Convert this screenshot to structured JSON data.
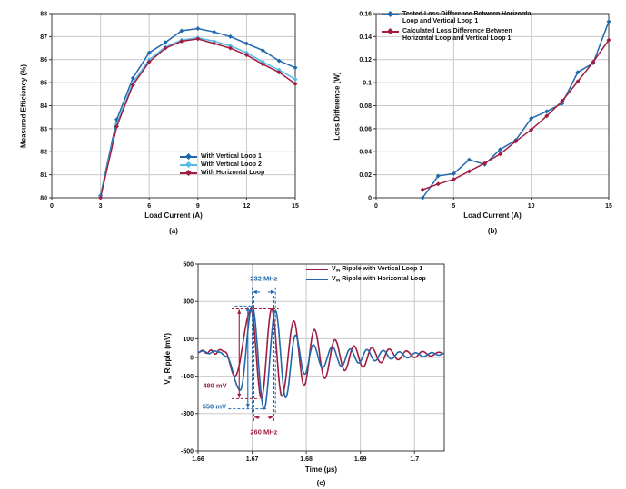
{
  "colors": {
    "blue": "#2068ac",
    "cyan": "#53bde6",
    "crimson": "#a01d40",
    "grid": "#c9c9c9",
    "border": "#3a3a3a",
    "text": "#111111"
  },
  "chart_data": [
    {
      "id": "a",
      "type": "line",
      "xlabel": "Load Current (A)",
      "ylabel": "Measured Efficiency (%)",
      "caption": "(a)",
      "xlim": [
        0,
        15
      ],
      "ylim": [
        80,
        88
      ],
      "grid": true,
      "legend_position": "bottom-right-inside",
      "xticks": {
        "values": [
          0,
          3,
          6,
          9,
          12,
          15
        ],
        "labels": [
          "0",
          "3",
          "6",
          "9",
          "12",
          "15"
        ]
      },
      "yticks": {
        "values": [
          80,
          81,
          82,
          83,
          84,
          85,
          86,
          87,
          88
        ],
        "labels": [
          "80",
          "81",
          "82",
          "83",
          "84",
          "85",
          "86",
          "87",
          "88"
        ]
      },
      "x": [
        3,
        4,
        5,
        6,
        7,
        8,
        9,
        10,
        11,
        12,
        13,
        14,
        15
      ],
      "series": [
        {
          "name": "With Vertical Loop 1",
          "color": "blue",
          "values": [
            80.1,
            83.4,
            85.2,
            86.3,
            86.75,
            87.25,
            87.35,
            87.2,
            87.0,
            86.7,
            86.4,
            85.95,
            85.65
          ]
        },
        {
          "name": "With Vertical Loop 2",
          "color": "cyan",
          "values": [
            80.05,
            83.2,
            85.0,
            86.0,
            86.55,
            86.85,
            86.95,
            86.8,
            86.6,
            86.3,
            85.9,
            85.55,
            85.15
          ]
        },
        {
          "name": "With Horizontal Loop",
          "color": "crimson",
          "values": [
            80.0,
            83.1,
            84.9,
            85.9,
            86.5,
            86.8,
            86.9,
            86.7,
            86.5,
            86.2,
            85.8,
            85.45,
            84.95
          ]
        }
      ]
    },
    {
      "id": "b",
      "type": "line",
      "xlabel": "Load Current (A)",
      "ylabel": "Loss Difference (W)",
      "caption": "(b)",
      "xlim": [
        0,
        15
      ],
      "ylim": [
        0,
        0.16
      ],
      "grid": true,
      "legend_position": "top-left-inside",
      "xticks": {
        "values": [
          0,
          5,
          10,
          15
        ],
        "labels": [
          "0",
          "5",
          "10",
          "15"
        ]
      },
      "yticks": {
        "values": [
          0,
          0.02,
          0.04,
          0.06,
          0.08,
          0.1,
          0.12,
          0.14,
          0.16
        ],
        "labels": [
          "0",
          "0.02",
          "0.04",
          "0.06",
          "0.08",
          "0.1",
          "0.12",
          "0.14",
          "0.16"
        ]
      },
      "x": [
        3,
        4,
        5,
        6,
        7,
        8,
        9,
        10,
        11,
        12,
        13,
        14,
        15
      ],
      "series": [
        {
          "name": "Tested Loss Difference Between Horizontal Loop and Vertical Loop 1",
          "color": "blue",
          "values": [
            0.0,
            0.019,
            0.021,
            0.033,
            0.029,
            0.042,
            0.05,
            0.069,
            0.075,
            0.082,
            0.109,
            0.117,
            0.153
          ]
        },
        {
          "name": "Calculated Loss Difference Between Horizontal Loop and Vertical Loop 1",
          "color": "crimson",
          "values": [
            0.007,
            0.012,
            0.016,
            0.023,
            0.03,
            0.038,
            0.049,
            0.059,
            0.071,
            0.084,
            0.101,
            0.118,
            0.137
          ]
        }
      ]
    },
    {
      "id": "c",
      "type": "line",
      "xlabel": "Time (µs)",
      "ylabel_parts": {
        "prefix": "V",
        "sub": "IN",
        "rest": " Ripple (mV)"
      },
      "caption": "(c)",
      "xlim": [
        1.66,
        1.7055
      ],
      "ylim": [
        -500,
        500
      ],
      "grid": true,
      "legend_position": "top-right-inside",
      "xticks": {
        "values": [
          1.66,
          1.67,
          1.68,
          1.69,
          1.7
        ],
        "labels": [
          "1.66",
          "1.67",
          "1.68",
          "1.69",
          "1.7"
        ]
      },
      "yticks": {
        "values": [
          500,
          300,
          100,
          0,
          -100,
          -300,
          -500
        ],
        "labels": [
          "500",
          "300",
          "100",
          "0",
          "-100",
          "-300",
          "-500"
        ]
      },
      "series": [
        {
          "name_parts": {
            "prefix": "V",
            "sub": "IN",
            "rest": " Ripple with Vertical Loop 1"
          },
          "color": "crimson",
          "keypoints": [
            [
              1.66,
              25
            ],
            [
              1.6608,
              38
            ],
            [
              1.6616,
              22
            ],
            [
              1.6624,
              40
            ],
            [
              1.6632,
              18
            ],
            [
              1.664,
              42
            ],
            [
              1.665,
              30
            ],
            [
              1.6668,
              -100
            ],
            [
              1.6698,
              255
            ],
            [
              1.6717,
              -220
            ],
            [
              1.6736,
              260
            ],
            [
              1.6755,
              -208
            ],
            [
              1.6777,
              195
            ],
            [
              1.6796,
              -150
            ],
            [
              1.6815,
              150
            ],
            [
              1.6834,
              -112
            ],
            [
              1.6853,
              95
            ],
            [
              1.6871,
              -70
            ],
            [
              1.6888,
              62
            ],
            [
              1.6905,
              -52
            ],
            [
              1.6921,
              52
            ],
            [
              1.6938,
              -28
            ],
            [
              1.6953,
              45
            ],
            [
              1.697,
              -12
            ],
            [
              1.6985,
              35
            ],
            [
              1.7,
              0
            ],
            [
              1.7015,
              32
            ],
            [
              1.703,
              8
            ],
            [
              1.7045,
              28
            ],
            [
              1.7055,
              20
            ]
          ]
        },
        {
          "name_parts": {
            "prefix": "V",
            "sub": "IN",
            "rest": " Ripple with Horizontal Loop"
          },
          "color": "blue",
          "keypoints": [
            [
              1.66,
              28
            ],
            [
              1.661,
              35
            ],
            [
              1.662,
              20
            ],
            [
              1.663,
              35
            ],
            [
              1.664,
              28
            ],
            [
              1.6652,
              5
            ],
            [
              1.6678,
              -175
            ],
            [
              1.67,
              275
            ],
            [
              1.6722,
              -275
            ],
            [
              1.6743,
              252
            ],
            [
              1.6762,
              -215
            ],
            [
              1.678,
              120
            ],
            [
              1.6797,
              -90
            ],
            [
              1.6813,
              68
            ],
            [
              1.683,
              -55
            ],
            [
              1.6848,
              58
            ],
            [
              1.6865,
              -48
            ],
            [
              1.6881,
              45
            ],
            [
              1.6897,
              -30
            ],
            [
              1.6912,
              42
            ],
            [
              1.6927,
              -18
            ],
            [
              1.6942,
              38
            ],
            [
              1.6957,
              -8
            ],
            [
              1.6972,
              30
            ],
            [
              1.6987,
              -2
            ],
            [
              1.7002,
              25
            ],
            [
              1.7017,
              5
            ],
            [
              1.7032,
              26
            ],
            [
              1.7045,
              12
            ],
            [
              1.7055,
              22
            ]
          ]
        }
      ],
      "annotations": {
        "labels": [
          {
            "id": "freq-blue",
            "text": "232 MHz",
            "t": 1.67215,
            "y": 420,
            "color": "blue"
          },
          {
            "id": "freq-red",
            "text": "260 MHz",
            "t": 1.67215,
            "y": -398,
            "color": "crimson"
          },
          {
            "id": "amp-red",
            "text": "480 mV",
            "t": 1.6631,
            "y": -152,
            "color": "crimson"
          },
          {
            "id": "amp-blue",
            "text": "550 mV",
            "t": 1.663,
            "y": -262,
            "color": "blue"
          }
        ],
        "vlines": [
          {
            "t": 1.67,
            "y1": 375,
            "y2": -300,
            "color": "blue"
          },
          {
            "t": 1.6743,
            "y1": 375,
            "y2": -300,
            "color": "blue"
          },
          {
            "t": 1.6703,
            "y1": 330,
            "y2": -340,
            "color": "crimson"
          },
          {
            "t": 1.674,
            "y1": 330,
            "y2": -340,
            "color": "crimson"
          }
        ],
        "hlines": [
          {
            "y": 275,
            "t1": 1.6668,
            "t2": 1.6703,
            "color": "blue"
          },
          {
            "y": -275,
            "t1": 1.6656,
            "t2": 1.6726,
            "color": "blue"
          },
          {
            "y": 260,
            "t1": 1.6662,
            "t2": 1.6749,
            "color": "crimson"
          },
          {
            "y": -220,
            "t1": 1.6662,
            "t2": 1.6713,
            "color": "crimson"
          }
        ],
        "arrows": [
          {
            "x1": 1.6676,
            "y1": 256,
            "x2": 1.6676,
            "y2": -216,
            "color": "crimson",
            "heads": "both"
          },
          {
            "x1": 1.6692,
            "y1": 271,
            "x2": 1.6692,
            "y2": -271,
            "color": "blue",
            "heads": "both"
          },
          {
            "x1": 1.6714,
            "y1": 350,
            "x2": 1.6701,
            "y2": 350,
            "color": "blue",
            "heads": "end"
          },
          {
            "x1": 1.6729,
            "y1": 350,
            "x2": 1.6742,
            "y2": 350,
            "color": "blue",
            "heads": "end"
          },
          {
            "x1": 1.6714,
            "y1": -320,
            "x2": 1.6704,
            "y2": -320,
            "color": "crimson",
            "heads": "end"
          },
          {
            "x1": 1.6729,
            "y1": -320,
            "x2": 1.6739,
            "y2": -320,
            "color": "crimson",
            "heads": "end"
          }
        ]
      }
    }
  ]
}
